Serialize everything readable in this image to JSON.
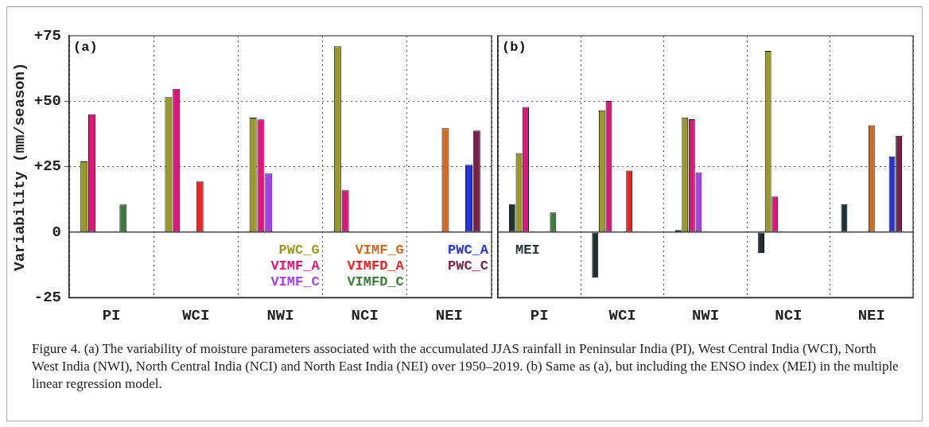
{
  "chart_data": [
    {
      "type": "bar",
      "title": "(a)",
      "ylabel": "Variability (mm/season)",
      "categories": [
        "PI",
        "WCI",
        "NWI",
        "NCI",
        "NEI"
      ],
      "ylim": [
        -25,
        75
      ],
      "yticks": [
        {
          "value": -25,
          "label": "-25"
        },
        {
          "value": 0,
          "label": "0"
        },
        {
          "value": 25,
          "label": "+25"
        },
        {
          "value": 50,
          "label": "+50"
        },
        {
          "value": 75,
          "label": "+75"
        }
      ],
      "grid": true,
      "legend": "bottom right",
      "series": [
        {
          "name": "PWC_G",
          "color": "#9a9a22",
          "values": [
            27,
            51.5,
            43.7,
            71,
            null
          ]
        },
        {
          "name": "VIMF_A",
          "color": "#e0147c",
          "values": [
            45,
            54.7,
            43,
            16,
            null
          ]
        },
        {
          "name": "VIMF_C",
          "color": "#a53ff0",
          "values": [
            null,
            null,
            22.4,
            null,
            null
          ]
        },
        {
          "name": "VIMF_G",
          "color": "#d2691e",
          "values": [
            null,
            null,
            null,
            null,
            39.7
          ]
        },
        {
          "name": "VIMFD_A",
          "color": "#ee2222",
          "values": [
            null,
            19.3,
            null,
            null,
            null
          ]
        },
        {
          "name": "VIMFD_C",
          "color": "#3a7d3a",
          "values": [
            10.5,
            null,
            null,
            null,
            null
          ]
        },
        {
          "name": "PWC_A",
          "color": "#2233dd",
          "values": [
            null,
            null,
            null,
            null,
            25.7
          ]
        },
        {
          "name": "PWC_C",
          "color": "#7a1f4a",
          "values": [
            null,
            null,
            null,
            null,
            38.8
          ]
        }
      ],
      "annotations": [
        "Figure 4. (a) The variability of moisture parameters associated with the accumulated JJAS rainfall in Peninsular India (PI), West Central India (WCI), North West India (NWI), North Central India (NCI) and North East India (NEI) over 1950–2019. (b) Same as (a), but including the ENSO index (MEI) in the multiple linear regression model."
      ]
    },
    {
      "type": "bar",
      "title": "(b)",
      "categories": [
        "PI",
        "WCI",
        "NWI",
        "NCI",
        "NEI"
      ],
      "ylim": [
        -25,
        75
      ],
      "grid": true,
      "legend": "bottom left",
      "tick_labels": "x",
      "yticks": [
        {
          "value": -25,
          "label": null
        },
        {
          "value": 0,
          "label": null
        },
        {
          "value": 25,
          "label": null
        },
        {
          "value": 50,
          "label": null
        },
        {
          "value": 75,
          "label": null
        }
      ],
      "series": [
        {
          "name": "MEI",
          "color": "#1e3030",
          "values": [
            10.7,
            -17.4,
            0.7,
            -7.9,
            10.7
          ]
        },
        {
          "color": "#9a9a22",
          "values": [
            30.2,
            46.5,
            43.8,
            69.2,
            null
          ]
        },
        {
          "color": "#e0147c",
          "values": [
            47.8,
            50.1,
            43.1,
            13.6,
            null
          ]
        },
        {
          "color": "#a53ff0",
          "values": [
            null,
            null,
            22.7,
            null,
            null
          ]
        },
        {
          "color": "#d2691e",
          "values": [
            null,
            null,
            null,
            null,
            40.8
          ]
        },
        {
          "color": "#ee2222",
          "values": [
            null,
            23.5,
            null,
            null,
            null
          ]
        },
        {
          "color": "#3a7d3a",
          "values": [
            7.5,
            null,
            null,
            null,
            null
          ]
        },
        {
          "color": "#2233dd",
          "values": [
            null,
            null,
            null,
            null,
            28.9
          ]
        },
        {
          "color": "#7a1f4a",
          "values": [
            null,
            null,
            null,
            null,
            36.8
          ]
        }
      ]
    }
  ]
}
